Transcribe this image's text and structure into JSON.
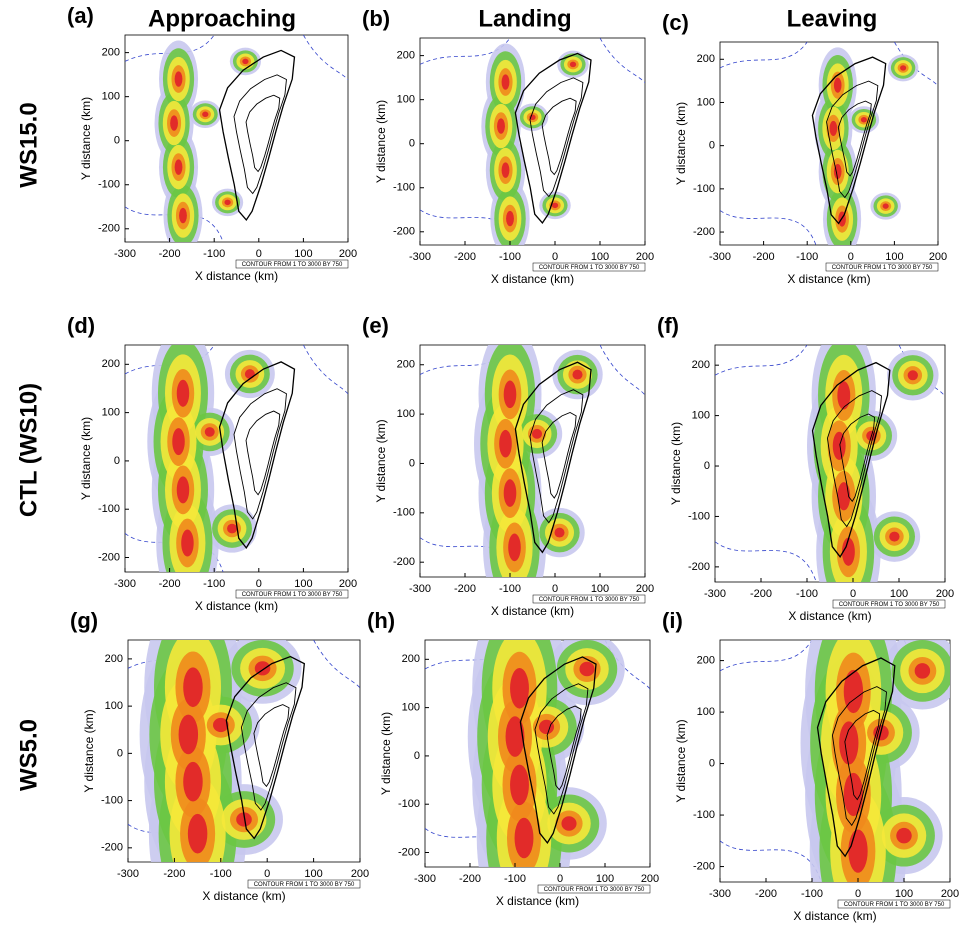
{
  "column_titles": [
    "Approaching",
    "Landing",
    "Leaving"
  ],
  "row_titles": [
    "WS15.0",
    "CTL (WS10)",
    "WS5.0"
  ],
  "panels": [
    {
      "label": "(a)"
    },
    {
      "label": "(b)"
    },
    {
      "label": "(c)"
    },
    {
      "label": "(d)"
    },
    {
      "label": "(e)"
    },
    {
      "label": "(f)"
    },
    {
      "label": "(g)"
    },
    {
      "label": "(h)"
    },
    {
      "label": "(i)"
    }
  ],
  "axes": {
    "x_label": "X distance (km)",
    "y_label": "Y distance (km)",
    "xticks": [
      -300,
      -200,
      -100,
      0,
      100,
      200
    ],
    "yticks": [
      -200,
      -100,
      0,
      100,
      200
    ],
    "contour_note": "CONTOUR FROM 1 TO 3000 BY 750"
  }
}
